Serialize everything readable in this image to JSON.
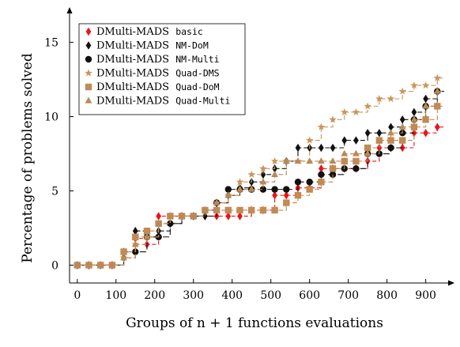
{
  "chart_data": {
    "type": "line",
    "xlabel": "Groups of n + 1 functions evaluations",
    "ylabel": "Percentage of problems solved",
    "xlim": [
      -20,
      960
    ],
    "ylim": [
      -1.2,
      17
    ],
    "xticks": [
      0,
      100,
      200,
      300,
      400,
      500,
      600,
      700,
      800,
      900
    ],
    "yticks": [
      0,
      5,
      10,
      15
    ],
    "legend_position": "top-left",
    "grid": false,
    "series": [
      {
        "name_prefix": "DMulti-MADS ",
        "name_suffix": "basic",
        "color": "#e8161c",
        "marker": "diamond",
        "dash": "5,3",
        "x": [
          0,
          30,
          60,
          90,
          120,
          150,
          180,
          210,
          240,
          270,
          300,
          330,
          360,
          390,
          420,
          450,
          480,
          510,
          540,
          570,
          600,
          630,
          660,
          690,
          720,
          750,
          780,
          810,
          840,
          870,
          900,
          930
        ],
        "y": [
          0,
          0,
          0,
          0,
          0.9,
          1.8,
          1.4,
          3.3,
          3.3,
          3.3,
          3.3,
          3.3,
          3.3,
          3.3,
          3.3,
          3.7,
          3.7,
          4.7,
          4.7,
          5.2,
          5.2,
          6.5,
          6.5,
          6.5,
          6.5,
          7.0,
          7.9,
          7.9,
          7.9,
          8.9,
          8.9,
          9.3
        ]
      },
      {
        "name_prefix": "DMulti-MADS ",
        "name_suffix": "NM-DoM",
        "color": "#111111",
        "marker": "diamond",
        "dash": "6,3",
        "x": [
          0,
          30,
          60,
          90,
          120,
          150,
          180,
          210,
          240,
          270,
          300,
          330,
          360,
          390,
          420,
          450,
          480,
          510,
          540,
          570,
          600,
          630,
          660,
          690,
          720,
          750,
          780,
          810,
          840,
          870,
          900,
          930
        ],
        "y": [
          0,
          0,
          0,
          0,
          0.5,
          2.3,
          1.9,
          2.3,
          2.8,
          3.3,
          3.3,
          3.3,
          4.2,
          4.7,
          5.2,
          5.6,
          6.1,
          6.5,
          7.0,
          7.9,
          7.9,
          7.9,
          7.9,
          8.4,
          8.4,
          8.9,
          8.9,
          9.3,
          9.8,
          10.3,
          11.2,
          11.7
        ]
      },
      {
        "name_prefix": "DMulti-MADS ",
        "name_suffix": "NM-Multi",
        "color": "#111111",
        "marker": "circle",
        "dash": "8,4",
        "x": [
          0,
          30,
          60,
          90,
          120,
          150,
          180,
          210,
          240,
          270,
          300,
          330,
          360,
          390,
          420,
          450,
          480,
          510,
          540,
          570,
          600,
          630,
          660,
          690,
          720,
          750,
          780,
          810,
          840,
          870,
          900,
          930
        ],
        "y": [
          0,
          0,
          0,
          0,
          0.9,
          0.9,
          1.9,
          1.9,
          2.8,
          3.3,
          3.3,
          3.7,
          4.2,
          5.1,
          5.1,
          5.1,
          5.1,
          5.1,
          5.1,
          5.6,
          5.6,
          6.1,
          6.1,
          6.5,
          6.5,
          7.5,
          7.5,
          7.9,
          8.9,
          9.8,
          10.7,
          11.7
        ]
      },
      {
        "name_prefix": "DMulti-MADS ",
        "name_suffix": "Quad-DMS",
        "color": "#c9965a",
        "marker": "star",
        "dash": "6,3",
        "x": [
          0,
          30,
          60,
          90,
          120,
          150,
          180,
          210,
          240,
          270,
          300,
          330,
          360,
          390,
          420,
          450,
          480,
          510,
          540,
          570,
          600,
          630,
          660,
          690,
          720,
          750,
          780,
          810,
          840,
          870,
          900,
          930
        ],
        "y": [
          0,
          0,
          0,
          0,
          0.5,
          1.4,
          1.9,
          2.8,
          3.3,
          3.3,
          3.3,
          3.7,
          4.2,
          4.7,
          5.6,
          6.1,
          6.5,
          7.0,
          7.0,
          7.0,
          8.4,
          9.3,
          9.8,
          10.3,
          10.3,
          10.7,
          11.2,
          11.2,
          11.7,
          12.1,
          12.1,
          12.6
        ]
      },
      {
        "name_prefix": "DMulti-MADS ",
        "name_suffix": "Quad-DoM",
        "color": "#c28a55",
        "marker": "square",
        "dash": "6,3",
        "x": [
          0,
          30,
          60,
          90,
          120,
          150,
          180,
          210,
          240,
          270,
          300,
          330,
          360,
          390,
          420,
          450,
          480,
          510,
          540,
          570,
          600,
          630,
          660,
          690,
          720,
          750,
          780,
          810,
          840,
          870,
          900,
          930
        ],
        "y": [
          0,
          0,
          0,
          0,
          0.9,
          1.9,
          2.3,
          2.8,
          3.3,
          3.3,
          3.3,
          3.7,
          3.7,
          3.7,
          3.7,
          3.7,
          3.7,
          3.7,
          4.2,
          4.7,
          5.1,
          5.6,
          6.5,
          7.0,
          7.0,
          7.9,
          8.4,
          8.4,
          8.4,
          9.3,
          9.8,
          10.7
        ]
      },
      {
        "name_prefix": "DMulti-MADS ",
        "name_suffix": "Quad-Multi",
        "color": "#b98a55",
        "marker": "triangle",
        "dash": "6,3",
        "x": [
          0,
          30,
          60,
          90,
          120,
          150,
          180,
          210,
          240,
          270,
          300,
          330,
          360,
          390,
          420,
          450,
          480,
          510,
          540,
          570,
          600,
          630,
          660,
          690,
          720,
          750,
          780,
          810,
          840,
          870,
          900,
          930
        ],
        "y": [
          0,
          0,
          0,
          0,
          0.5,
          1.4,
          1.9,
          2.8,
          3.3,
          3.3,
          3.3,
          3.7,
          4.2,
          4.7,
          5.1,
          5.1,
          5.6,
          6.1,
          7.0,
          7.0,
          7.0,
          7.0,
          7.0,
          7.5,
          7.5,
          7.5,
          8.4,
          8.9,
          9.3,
          9.8,
          10.7,
          11.7
        ]
      }
    ]
  }
}
